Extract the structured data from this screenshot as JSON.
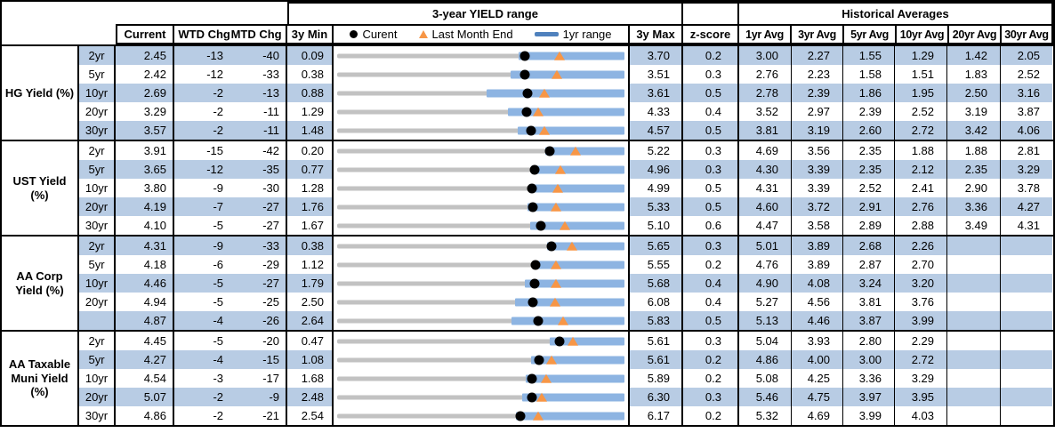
{
  "header": {
    "columns": {
      "current": "Current",
      "wtd": "WTD Chg",
      "mtd": "MTD Chg",
      "min": "3y Min",
      "max": "3y Max",
      "z": "z-score",
      "avgs": [
        "1yr Avg",
        "3yr Avg",
        "5yr Avg",
        "10yr Avg",
        "20yr Avg",
        "30yr Avg"
      ]
    }
  },
  "colors": {
    "stripe": "#b8cce4",
    "bar_1y": "#8db4e2",
    "legend_bar": "#4f81bd",
    "track": "#c2c2c2",
    "triangle": "#f79646",
    "dot": "#000000",
    "border": "#000000"
  },
  "chart_data": {
    "type": "table",
    "title": "3-year YIELD range",
    "hist_title": "Historical Averages",
    "legend": {
      "current": "Curent",
      "last_month_end": "Last Month End",
      "range_1y": "1yr range"
    },
    "groups": [
      {
        "label": "HG Yield (%)",
        "rows": [
          {
            "tenor": "2yr",
            "current": "2.45",
            "wtd_chg": "-13",
            "mtd_chg": "-40",
            "min3y": "0.09",
            "max3y": "3.70",
            "zscore": "0.2",
            "avgs": [
              "3.00",
              "2.27",
              "1.55",
              "1.29",
              "1.42",
              "2.05"
            ],
            "range": {
              "min": 0.09,
              "max": 3.7,
              "cur": 2.45,
              "lme": 2.88,
              "low1y": 2.37,
              "high1y": 3.7
            }
          },
          {
            "tenor": "5yr",
            "current": "2.42",
            "wtd_chg": "-12",
            "mtd_chg": "-33",
            "min3y": "0.38",
            "max3y": "3.51",
            "zscore": "0.3",
            "avgs": [
              "2.76",
              "2.23",
              "1.58",
              "1.51",
              "1.83",
              "2.52"
            ],
            "range": {
              "min": 0.38,
              "max": 3.51,
              "cur": 2.42,
              "lme": 2.77,
              "low1y": 2.27,
              "high1y": 3.51
            }
          },
          {
            "tenor": "10yr",
            "current": "2.69",
            "wtd_chg": "-2",
            "mtd_chg": "-13",
            "min3y": "0.88",
            "max3y": "3.61",
            "zscore": "0.5",
            "avgs": [
              "2.78",
              "2.39",
              "1.86",
              "1.95",
              "2.50",
              "3.16"
            ],
            "range": {
              "min": 0.88,
              "max": 3.61,
              "cur": 2.69,
              "lme": 2.85,
              "low1y": 2.3,
              "high1y": 3.61
            }
          },
          {
            "tenor": "20yr",
            "current": "3.29",
            "wtd_chg": "-2",
            "mtd_chg": "-11",
            "min3y": "1.29",
            "max3y": "4.33",
            "zscore": "0.4",
            "avgs": [
              "3.52",
              "2.97",
              "2.39",
              "2.52",
              "3.19",
              "3.87"
            ],
            "range": {
              "min": 1.29,
              "max": 4.33,
              "cur": 3.29,
              "lme": 3.42,
              "low1y": 3.1,
              "high1y": 4.33
            }
          },
          {
            "tenor": "30yr",
            "current": "3.57",
            "wtd_chg": "-2",
            "mtd_chg": "-11",
            "min3y": "1.48",
            "max3y": "4.57",
            "zscore": "0.5",
            "avgs": [
              "3.81",
              "3.19",
              "2.60",
              "2.72",
              "3.42",
              "4.06"
            ],
            "range": {
              "min": 1.48,
              "max": 4.57,
              "cur": 3.57,
              "lme": 3.71,
              "low1y": 3.42,
              "high1y": 4.57
            }
          }
        ]
      },
      {
        "label": "UST Yield (%)",
        "rows": [
          {
            "tenor": "2yr",
            "current": "3.91",
            "wtd_chg": "-15",
            "mtd_chg": "-42",
            "min3y": "0.20",
            "max3y": "5.22",
            "zscore": "0.3",
            "avgs": [
              "4.69",
              "3.56",
              "2.35",
              "1.88",
              "1.88",
              "2.81"
            ],
            "range": {
              "min": 0.2,
              "max": 5.22,
              "cur": 3.91,
              "lme": 4.37,
              "low1y": 3.83,
              "high1y": 5.22
            }
          },
          {
            "tenor": "5yr",
            "current": "3.65",
            "wtd_chg": "-12",
            "mtd_chg": "-35",
            "min3y": "0.77",
            "max3y": "4.96",
            "zscore": "0.3",
            "avgs": [
              "4.30",
              "3.39",
              "2.35",
              "2.12",
              "2.35",
              "3.29"
            ],
            "range": {
              "min": 0.77,
              "max": 4.96,
              "cur": 3.65,
              "lme": 4.03,
              "low1y": 3.6,
              "high1y": 4.96
            }
          },
          {
            "tenor": "10yr",
            "current": "3.80",
            "wtd_chg": "-9",
            "mtd_chg": "-30",
            "min3y": "1.28",
            "max3y": "4.99",
            "zscore": "0.5",
            "avgs": [
              "4.31",
              "3.39",
              "2.52",
              "2.41",
              "2.90",
              "3.78"
            ],
            "range": {
              "min": 1.28,
              "max": 4.99,
              "cur": 3.8,
              "lme": 4.13,
              "low1y": 3.77,
              "high1y": 4.99
            }
          },
          {
            "tenor": "20yr",
            "current": "4.19",
            "wtd_chg": "-7",
            "mtd_chg": "-27",
            "min3y": "1.76",
            "max3y": "5.33",
            "zscore": "0.5",
            "avgs": [
              "4.60",
              "3.72",
              "2.91",
              "2.76",
              "3.36",
              "4.27"
            ],
            "range": {
              "min": 1.76,
              "max": 5.33,
              "cur": 4.19,
              "lme": 4.48,
              "low1y": 4.13,
              "high1y": 5.33
            }
          },
          {
            "tenor": "30yr",
            "current": "4.10",
            "wtd_chg": "-5",
            "mtd_chg": "-27",
            "min3y": "1.67",
            "max3y": "5.10",
            "zscore": "0.6",
            "avgs": [
              "4.47",
              "3.58",
              "2.89",
              "2.88",
              "3.49",
              "4.31"
            ],
            "range": {
              "min": 1.67,
              "max": 5.1,
              "cur": 4.1,
              "lme": 4.39,
              "low1y": 3.97,
              "high1y": 5.1
            }
          }
        ]
      },
      {
        "label": "AA Corp Yield (%)",
        "rows": [
          {
            "tenor": "2yr",
            "current": "4.31",
            "wtd_chg": "-9",
            "mtd_chg": "-33",
            "min3y": "0.38",
            "max3y": "5.65",
            "zscore": "0.3",
            "avgs": [
              "5.01",
              "3.89",
              "2.68",
              "2.26",
              "",
              ""
            ],
            "range": {
              "min": 0.38,
              "max": 5.65,
              "cur": 4.31,
              "lme": 4.69,
              "low1y": 4.23,
              "high1y": 5.65
            }
          },
          {
            "tenor": "5yr",
            "current": "4.18",
            "wtd_chg": "-6",
            "mtd_chg": "-29",
            "min3y": "1.12",
            "max3y": "5.55",
            "zscore": "0.2",
            "avgs": [
              "4.76",
              "3.89",
              "2.87",
              "2.70",
              "",
              ""
            ],
            "range": {
              "min": 1.12,
              "max": 5.55,
              "cur": 4.18,
              "lme": 4.49,
              "low1y": 4.12,
              "high1y": 5.55
            }
          },
          {
            "tenor": "10yr",
            "current": "4.46",
            "wtd_chg": "-5",
            "mtd_chg": "-27",
            "min3y": "1.79",
            "max3y": "5.68",
            "zscore": "0.4",
            "avgs": [
              "4.90",
              "4.08",
              "3.24",
              "3.20",
              "",
              ""
            ],
            "range": {
              "min": 1.79,
              "max": 5.68,
              "cur": 4.46,
              "lme": 4.75,
              "low1y": 4.33,
              "high1y": 5.68
            }
          },
          {
            "tenor": "20yr",
            "current": "4.94",
            "wtd_chg": "-5",
            "mtd_chg": "-25",
            "min3y": "2.50",
            "max3y": "6.08",
            "zscore": "0.4",
            "avgs": [
              "5.27",
              "4.56",
              "3.81",
              "3.76",
              "",
              ""
            ],
            "range": {
              "min": 2.5,
              "max": 6.08,
              "cur": 4.94,
              "lme": 5.21,
              "low1y": 4.72,
              "high1y": 6.08
            }
          },
          {
            "tenor": "",
            "current": "4.87",
            "wtd_chg": "-4",
            "mtd_chg": "-26",
            "min3y": "2.64",
            "max3y": "5.83",
            "zscore": "0.5",
            "avgs": [
              "5.13",
              "4.46",
              "3.87",
              "3.99",
              "",
              ""
            ],
            "range": {
              "min": 2.64,
              "max": 5.83,
              "cur": 4.87,
              "lme": 5.15,
              "low1y": 4.58,
              "high1y": 5.83
            }
          }
        ]
      },
      {
        "label": "AA Taxable Muni Yield (%)",
        "rows": [
          {
            "tenor": "2yr",
            "current": "4.45",
            "wtd_chg": "-5",
            "mtd_chg": "-20",
            "min3y": "0.47",
            "max3y": "5.61",
            "zscore": "0.3",
            "avgs": [
              "5.04",
              "3.93",
              "2.80",
              "2.29",
              "",
              ""
            ],
            "range": {
              "min": 0.47,
              "max": 5.61,
              "cur": 4.45,
              "lme": 4.68,
              "low1y": 4.28,
              "high1y": 5.61
            }
          },
          {
            "tenor": "5yr",
            "current": "4.27",
            "wtd_chg": "-4",
            "mtd_chg": "-15",
            "min3y": "1.08",
            "max3y": "5.61",
            "zscore": "0.2",
            "avgs": [
              "4.86",
              "4.00",
              "3.00",
              "2.72",
              "",
              ""
            ],
            "range": {
              "min": 1.08,
              "max": 5.61,
              "cur": 4.27,
              "lme": 4.46,
              "low1y": 4.14,
              "high1y": 5.61
            }
          },
          {
            "tenor": "10yr",
            "current": "4.54",
            "wtd_chg": "-3",
            "mtd_chg": "-17",
            "min3y": "1.68",
            "max3y": "5.89",
            "zscore": "0.2",
            "avgs": [
              "5.08",
              "4.25",
              "3.36",
              "3.29",
              "",
              ""
            ],
            "range": {
              "min": 1.68,
              "max": 5.89,
              "cur": 4.54,
              "lme": 4.74,
              "low1y": 4.44,
              "high1y": 5.89
            }
          },
          {
            "tenor": "20yr",
            "current": "5.07",
            "wtd_chg": "-2",
            "mtd_chg": "-9",
            "min3y": "2.48",
            "max3y": "6.30",
            "zscore": "0.3",
            "avgs": [
              "5.46",
              "4.75",
              "3.97",
              "3.95",
              "",
              ""
            ],
            "range": {
              "min": 2.48,
              "max": 6.3,
              "cur": 5.07,
              "lme": 5.2,
              "low1y": 4.94,
              "high1y": 6.3
            }
          },
          {
            "tenor": "30yr",
            "current": "4.86",
            "wtd_chg": "-2",
            "mtd_chg": "-21",
            "min3y": "2.54",
            "max3y": "6.17",
            "zscore": "0.2",
            "avgs": [
              "5.32",
              "4.69",
              "3.99",
              "4.03",
              "",
              ""
            ],
            "range": {
              "min": 2.54,
              "max": 6.17,
              "cur": 4.86,
              "lme": 5.08,
              "low1y": 4.8,
              "high1y": 6.17
            }
          }
        ]
      }
    ]
  }
}
